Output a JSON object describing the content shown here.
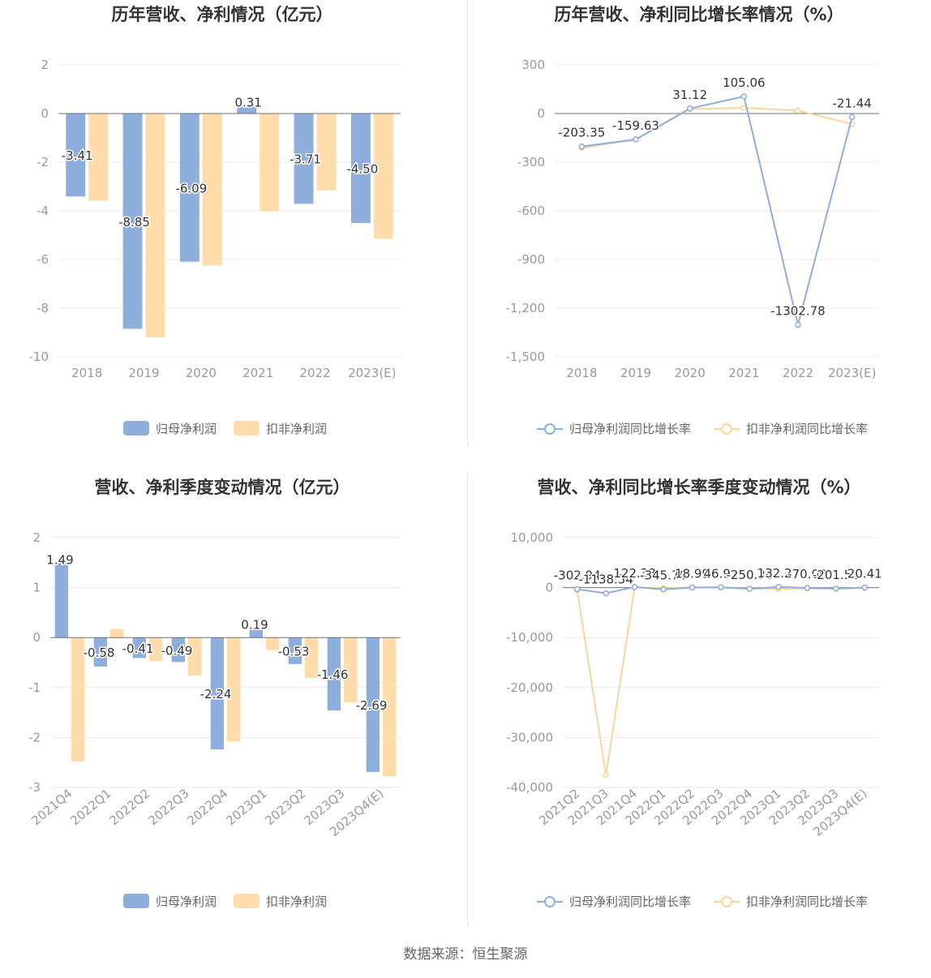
{
  "source": "数据来源：恒生聚源",
  "colors": {
    "blue": "#8eaedb",
    "orange": "#ffdcaa",
    "orange_line": "#fbd59a",
    "axis": "#999999",
    "grid": "#e6e9f2",
    "label": "#333333",
    "title": "#333333"
  },
  "legends": {
    "bar": [
      "归母净利润",
      "扣非净利润"
    ],
    "line": [
      "归母净利润同比增长率",
      "扣非净利润同比增长率"
    ]
  },
  "chart_data": [
    {
      "id": "c1",
      "type": "bar",
      "title": "历年营收、净利情况（亿元）",
      "categories": [
        "2018",
        "2019",
        "2020",
        "2021",
        "2022",
        "2023(E)"
      ],
      "ylim": [
        -10,
        2
      ],
      "yticks": [
        2,
        0,
        -2,
        -4,
        -6,
        -8,
        -10
      ],
      "ytick_labels": [
        "2",
        "0",
        "-2",
        "-4",
        "-6",
        "-8",
        "-10"
      ],
      "series": [
        {
          "name": "归母净利润",
          "values": [
            -3.41,
            -8.85,
            -6.09,
            0.31,
            -3.71,
            -4.5
          ],
          "labels": [
            "-3.41",
            "-8.85",
            "-6.09",
            "0.31",
            "-3.71",
            "-4.50"
          ]
        },
        {
          "name": "扣非净利润",
          "values": [
            -3.58,
            -9.2,
            -6.25,
            -4.02,
            -3.16,
            -5.15
          ]
        }
      ]
    },
    {
      "id": "c2",
      "type": "line",
      "title": "历年营收、净利同比增长率情况（%）",
      "categories": [
        "2018",
        "2019",
        "2020",
        "2021",
        "2022",
        "2023(E)"
      ],
      "ylim": [
        -1500,
        300
      ],
      "yticks": [
        300,
        0,
        -300,
        -600,
        -900,
        -1200,
        -1500
      ],
      "ytick_labels": [
        "300",
        "0",
        "-300",
        "-600",
        "-900",
        "-1,200",
        "-1,500"
      ],
      "series": [
        {
          "name": "归母净利润同比增长率",
          "values": [
            -203.35,
            -159.63,
            31.12,
            105.06,
            -1302.78,
            -21.44
          ],
          "labels": [
            "-203.35",
            "-159.63",
            "31.12",
            "105.06",
            "-1302.78",
            "-21.44"
          ]
        },
        {
          "name": "扣非净利润同比增长率",
          "values": [
            -212,
            -160,
            28,
            35,
            18,
            -65
          ]
        }
      ]
    },
    {
      "id": "c3",
      "type": "bar",
      "title": "营收、净利季度变动情况（亿元）",
      "categories": [
        "2021Q4",
        "2022Q1",
        "2022Q2",
        "2022Q3",
        "2022Q4",
        "2023Q1",
        "2023Q2",
        "2023Q3",
        "2023Q4(E)"
      ],
      "ylim": [
        -3,
        2
      ],
      "yticks": [
        2,
        1,
        0,
        -1,
        -2,
        -3
      ],
      "ytick_labels": [
        "2",
        "1",
        "0",
        "-1",
        "-2",
        "-3"
      ],
      "series": [
        {
          "name": "归母净利润",
          "values": [
            1.49,
            -0.58,
            -0.41,
            -0.49,
            -2.24,
            0.19,
            -0.53,
            -1.46,
            -2.69
          ],
          "labels": [
            "1.49",
            "-0.58",
            "-0.41",
            "-0.49",
            "-2.24",
            "0.19",
            "-0.53",
            "-1.46",
            "-2.69"
          ]
        },
        {
          "name": "扣非净利润",
          "values": [
            -2.48,
            0.17,
            -0.47,
            -0.76,
            -2.08,
            -0.25,
            -0.81,
            -1.3,
            -2.78
          ]
        }
      ]
    },
    {
      "id": "c4",
      "type": "line",
      "title": "营收、净利同比增长率季度变动情况（%）",
      "categories": [
        "2021Q2",
        "2021Q3",
        "2021Q4",
        "2022Q1",
        "2022Q2",
        "2022Q3",
        "2022Q4",
        "2023Q1",
        "2023Q2",
        "2023Q3",
        "2023Q4(E)"
      ],
      "ylim": [
        -40000,
        10000
      ],
      "yticks": [
        10000,
        0,
        -10000,
        -20000,
        -30000,
        -40000
      ],
      "ytick_labels": [
        "10,000",
        "0",
        "-10,000",
        "-20,000",
        "-30,000",
        "-40,000"
      ],
      "series": [
        {
          "name": "归母净利润同比增长率",
          "values": [
            -302.94,
            -1138.54,
            122.38,
            -345.7,
            18.99,
            46.91,
            -250.3,
            132.27,
            -70.0,
            -201.52,
            20.41
          ],
          "labels": [
            "-302.94",
            "-1138.54",
            "122.38",
            "-345.70",
            "18.99",
            "46.91",
            "-250.30",
            "132.27",
            "-70.00",
            "-201.52",
            "20.41"
          ]
        },
        {
          "name": "扣非净利润同比增长率",
          "values": [
            -500,
            -37500,
            80,
            -120,
            30,
            10,
            -180,
            -250,
            -150,
            -200,
            -60
          ]
        }
      ]
    }
  ]
}
